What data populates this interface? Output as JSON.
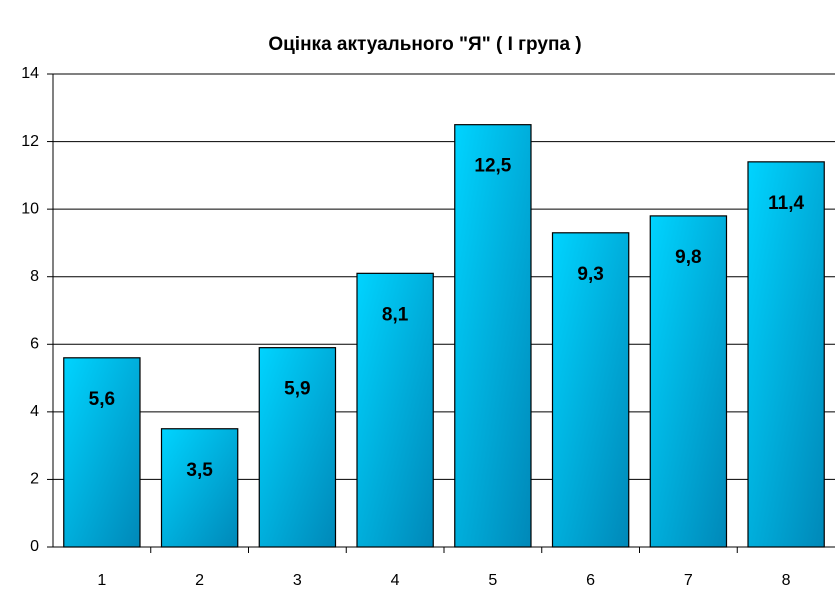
{
  "chart_data": {
    "type": "bar",
    "title": "Оцінка  актуального \"Я\" ( І група )",
    "categories": [
      "1",
      "2",
      "3",
      "4",
      "5",
      "6",
      "7",
      "8"
    ],
    "values": [
      5.6,
      3.5,
      5.9,
      8.1,
      12.5,
      9.3,
      9.8,
      11.4
    ],
    "value_labels": [
      "5,6",
      "3,5",
      "5,9",
      "8,1",
      "12,5",
      "9,3",
      "9,8",
      "11,4"
    ],
    "color": "#00d4ff",
    "ylim": [
      0,
      14
    ],
    "yticks": [
      0,
      2,
      4,
      6,
      8,
      10,
      12,
      14
    ],
    "grid": true
  }
}
